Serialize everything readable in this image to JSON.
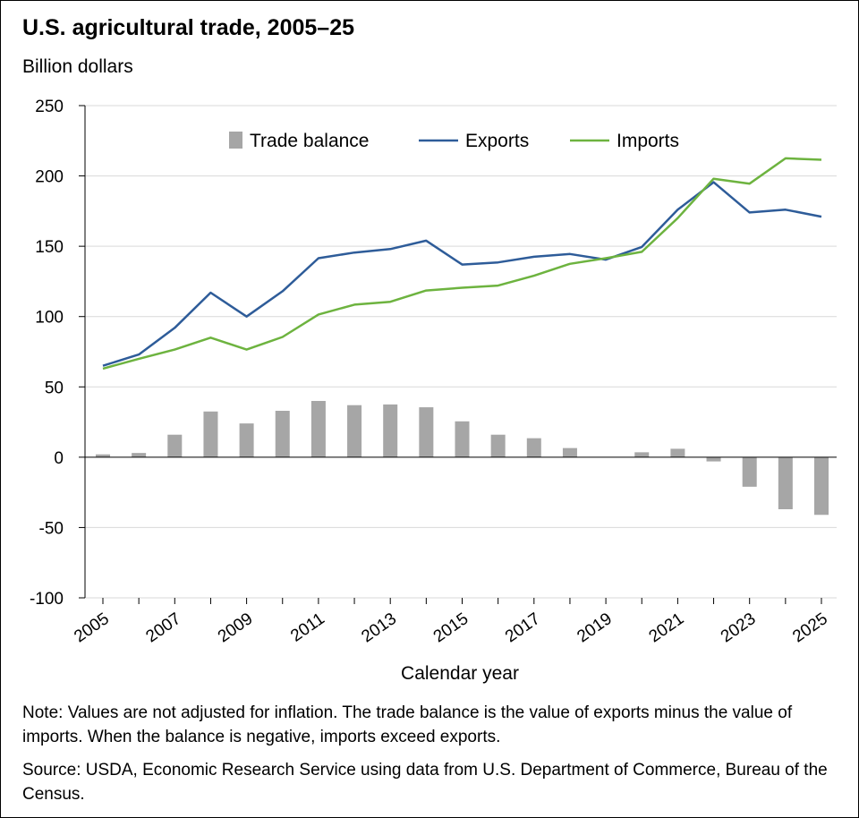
{
  "chart_data": {
    "type": "bar+line",
    "title": "U.S. agricultural trade, 2005–25",
    "unit_label": "Billion dollars",
    "xlabel": "Calendar year",
    "ylim": [
      -100,
      250
    ],
    "yticks": [
      250,
      200,
      150,
      100,
      50,
      0,
      -50,
      -100
    ],
    "ytick_labels": [
      "250",
      "200",
      "150",
      "100",
      "50",
      "0",
      "-50",
      "-100"
    ],
    "years": [
      2005,
      2006,
      2007,
      2008,
      2009,
      2010,
      2011,
      2012,
      2013,
      2014,
      2015,
      2016,
      2017,
      2018,
      2019,
      2020,
      2021,
      2022,
      2023,
      2024,
      2025
    ],
    "xtick_labels": [
      "2005",
      "2007",
      "2009",
      "2011",
      "2013",
      "2015",
      "2017",
      "2019",
      "2021",
      "2023",
      "2025"
    ],
    "grid": true,
    "legend_position": "top",
    "series": [
      {
        "name": "Trade balance",
        "kind": "bar",
        "color": "#a6a6a6",
        "values": [
          2,
          3,
          16,
          32.5,
          24,
          33,
          40,
          37,
          37.5,
          35.5,
          25.5,
          16,
          13.5,
          6.5,
          0,
          3.5,
          6,
          -3,
          -21,
          -37,
          -41
        ]
      },
      {
        "name": "Exports",
        "kind": "line",
        "color": "#2e5c99",
        "values": [
          65,
          73,
          92,
          117,
          100,
          118,
          141.5,
          145.5,
          148,
          154,
          137,
          138.5,
          142.5,
          144.5,
          140.5,
          149.5,
          176,
          195.5,
          174,
          176,
          171
        ]
      },
      {
        "name": "Imports",
        "kind": "line",
        "color": "#6db33f",
        "values": [
          63,
          70,
          76.5,
          85,
          76.5,
          85.5,
          101.5,
          108.5,
          110.5,
          118.5,
          120.5,
          122,
          129,
          137.5,
          141.5,
          146,
          170,
          198,
          194.5,
          212.5,
          211.5
        ]
      }
    ]
  },
  "footer": {
    "note": "Note: Values are not adjusted for inflation. The trade balance is the value of exports minus the value of imports. When the balance is negative, imports exceed exports.",
    "source": "Source: USDA, Economic Research Service using data from U.S. Department of Commerce, Bureau of the Census."
  }
}
